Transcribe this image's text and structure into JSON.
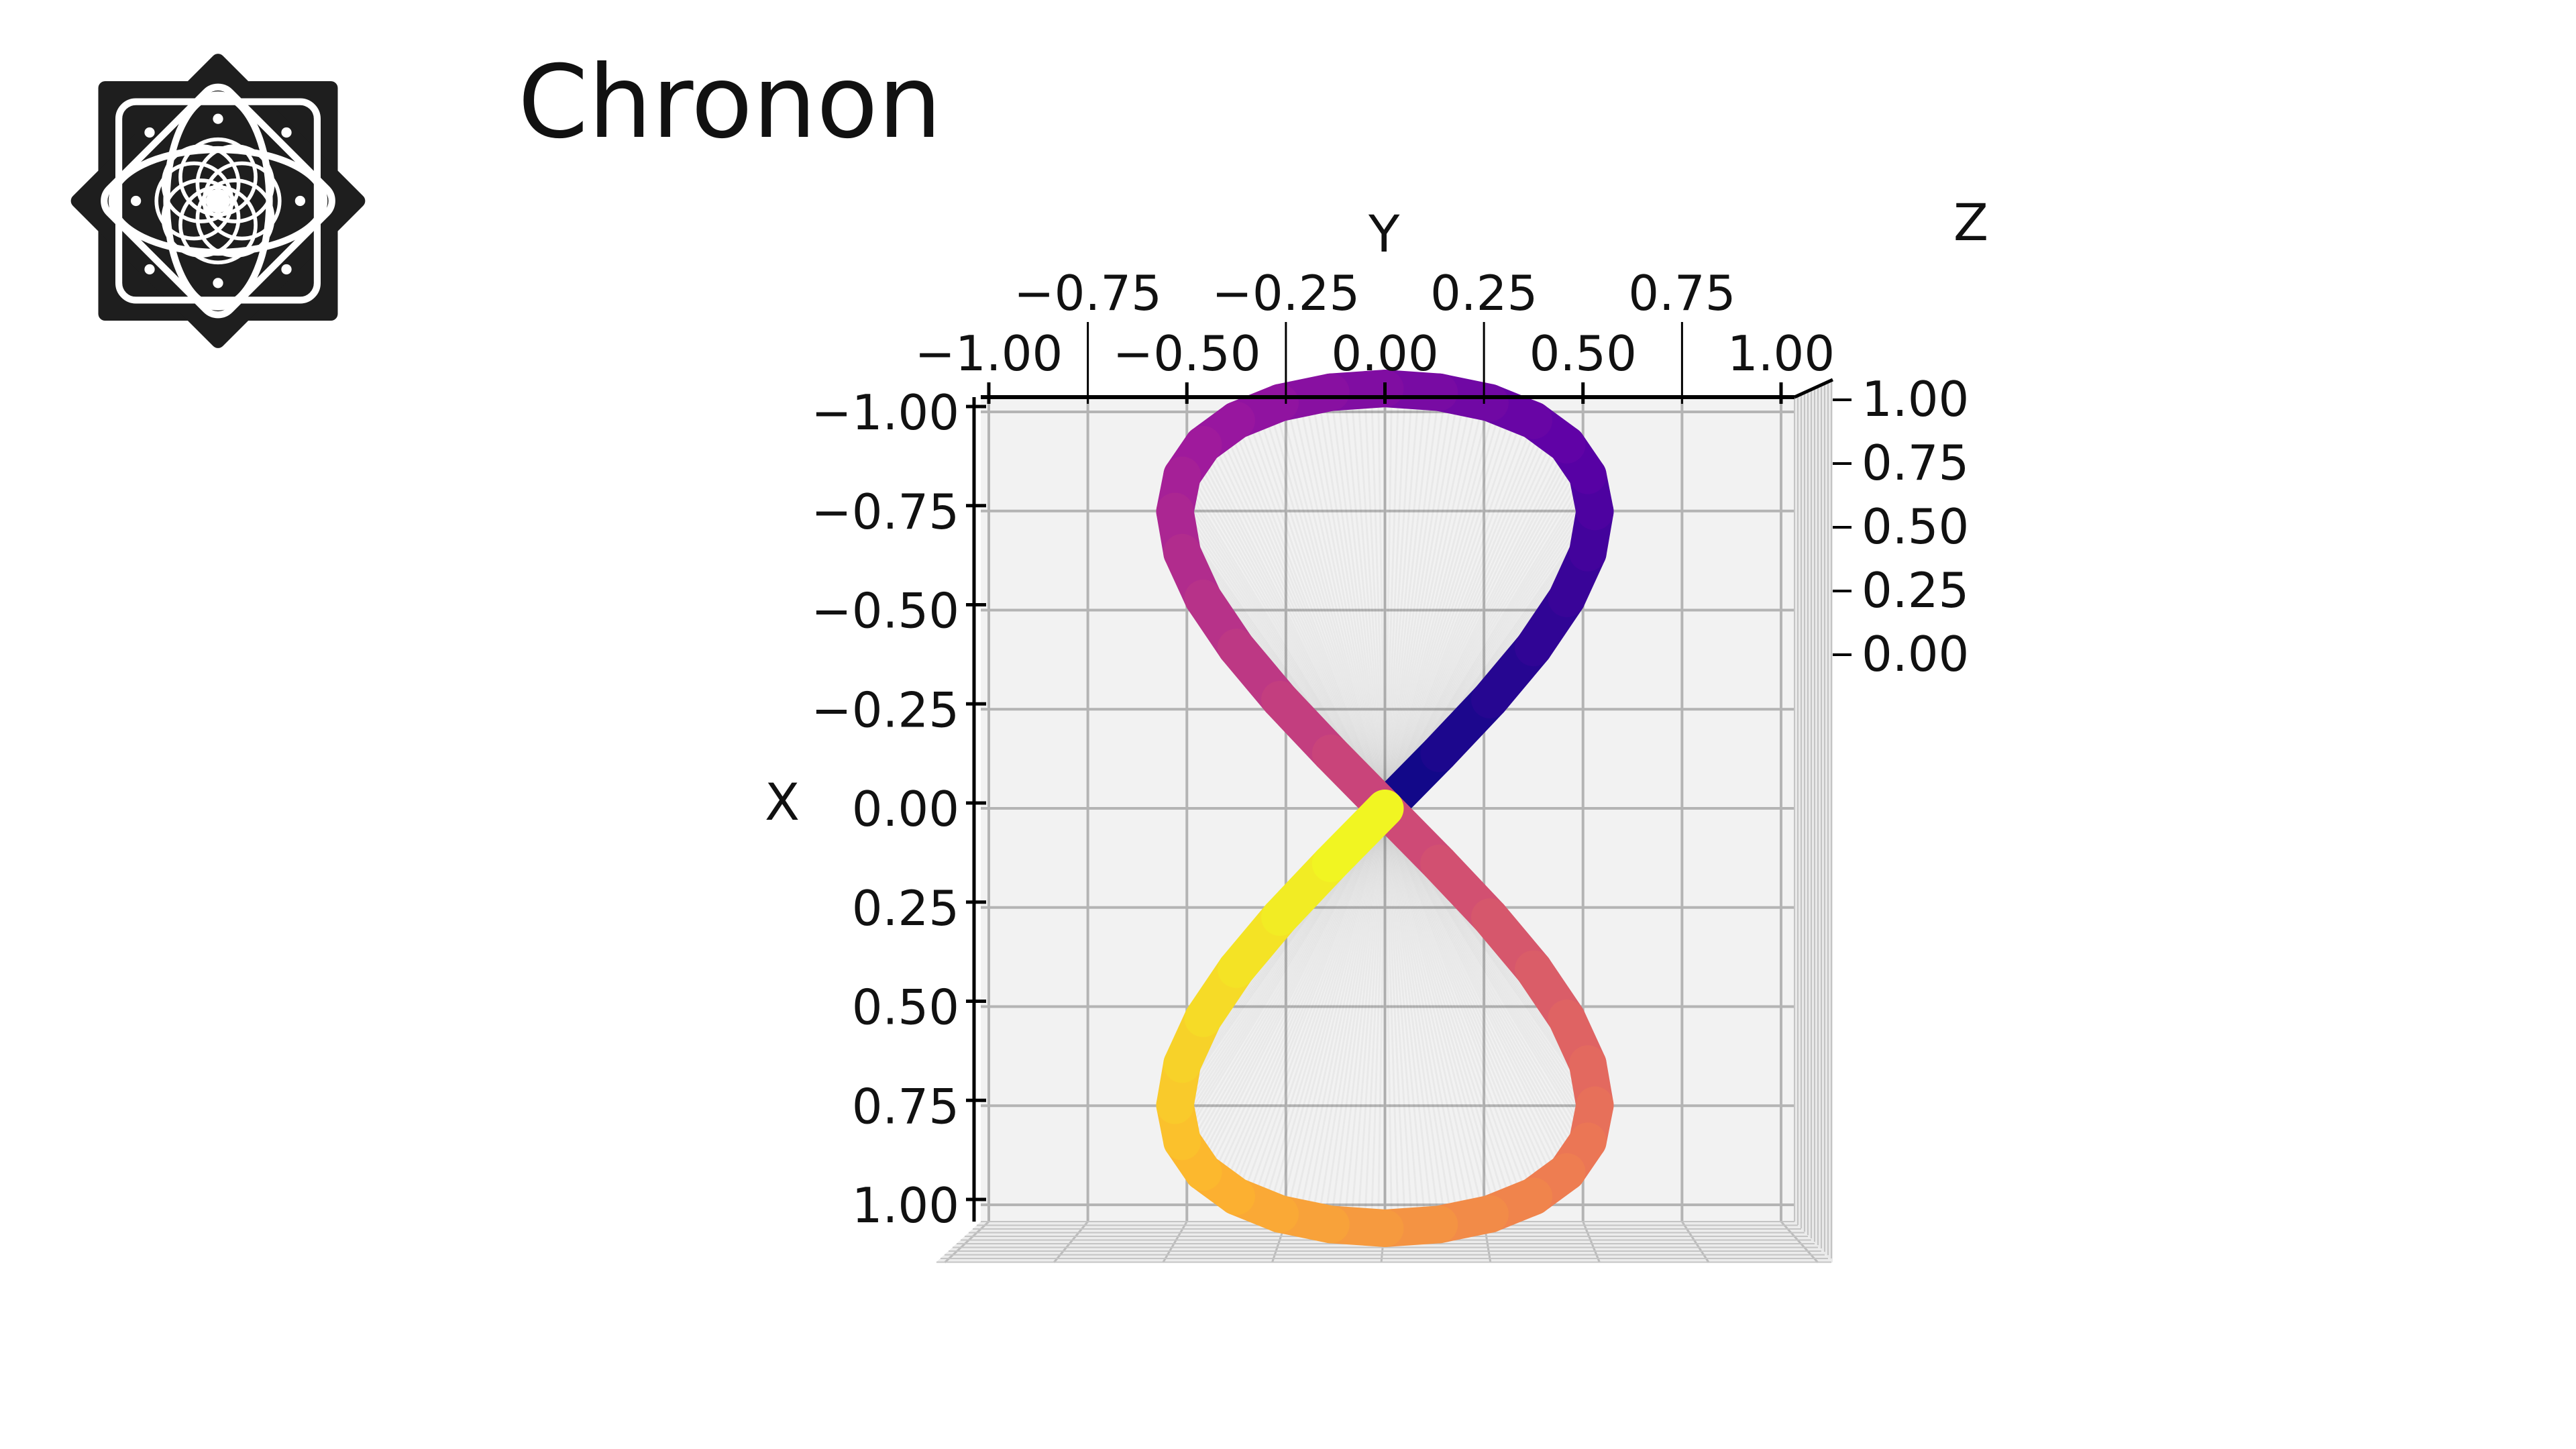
{
  "header": {
    "title": "Chronon",
    "logo_icon": "mandala-logo"
  },
  "chart_data": {
    "type": "line",
    "projection": "3d",
    "title": "",
    "xlabel": "X",
    "ylabel": "Y",
    "zlabel": "Z",
    "xlim": [
      -1,
      1
    ],
    "ylim": [
      -1,
      1
    ],
    "zlim": [
      0,
      1
    ],
    "grid": true,
    "colormap": "plasma",
    "colors": [
      "#0d0887",
      "#5c01a6",
      "#9c179e",
      "#cc4778",
      "#ed7953",
      "#fdb42f",
      "#f0f921"
    ],
    "x_ticks": [
      "−1.00",
      "−0.75",
      "−0.50",
      "−0.25",
      "0.00",
      "0.25",
      "0.50",
      "0.75",
      "1.00"
    ],
    "y_ticks": [
      "−1.00",
      "−0.75",
      "−0.50",
      "−0.25",
      "0.00",
      "0.25",
      "0.50",
      "0.75",
      "1.00"
    ],
    "z_ticks": [
      "0.00",
      "0.25",
      "0.50",
      "0.75",
      "1.00"
    ],
    "series": [
      {
        "x": [
          0,
          -0.131,
          -0.259,
          -0.383,
          -0.5,
          -0.609,
          -0.707,
          -0.793,
          -0.866,
          -0.924,
          -0.966,
          -0.991,
          -1,
          -0.991,
          -0.966,
          -0.924,
          -0.866,
          -0.793,
          -0.707,
          -0.609,
          -0.5,
          -0.383,
          -0.259,
          -0.131,
          0,
          0.131,
          0.259,
          0.383,
          0.5,
          0.609,
          0.707,
          0.793,
          0.866,
          0.924,
          0.966,
          0.991,
          1,
          0.991,
          0.966,
          0.924,
          0.866,
          0.793,
          0.707,
          0.609,
          0.5,
          0.383,
          0.259,
          0.131,
          0
        ],
        "y": [
          0,
          0.129,
          0.25,
          0.354,
          0.433,
          0.483,
          0.5,
          0.483,
          0.433,
          0.354,
          0.25,
          0.129,
          0,
          -0.129,
          -0.25,
          -0.354,
          -0.433,
          -0.483,
          -0.5,
          -0.483,
          -0.433,
          -0.354,
          -0.25,
          -0.129,
          0,
          0.129,
          0.25,
          0.354,
          0.433,
          0.483,
          0.5,
          0.483,
          0.433,
          0.354,
          0.25,
          0.129,
          0,
          -0.129,
          -0.25,
          -0.354,
          -0.433,
          -0.483,
          -0.5,
          -0.483,
          -0.433,
          -0.354,
          -0.25,
          -0.129,
          0
        ],
        "z": [
          0,
          0.021,
          0.042,
          0.063,
          0.083,
          0.104,
          0.125,
          0.146,
          0.167,
          0.188,
          0.208,
          0.229,
          0.25,
          0.271,
          0.292,
          0.313,
          0.333,
          0.354,
          0.375,
          0.396,
          0.417,
          0.438,
          0.458,
          0.479,
          0.5,
          0.521,
          0.542,
          0.563,
          0.583,
          0.604,
          0.625,
          0.646,
          0.667,
          0.688,
          0.708,
          0.729,
          0.75,
          0.771,
          0.792,
          0.813,
          0.833,
          0.854,
          0.875,
          0.896,
          0.917,
          0.938,
          0.958,
          0.979,
          1
        ]
      }
    ]
  }
}
